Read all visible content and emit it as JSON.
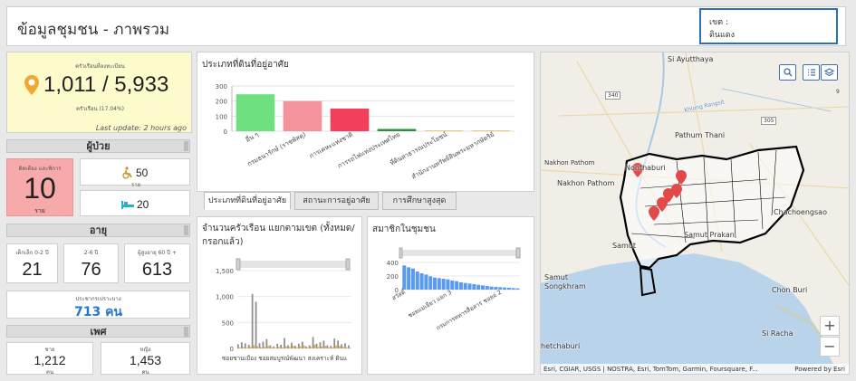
{
  "header": {
    "title": "ข้อมูลชุมชน - ภาพรวม",
    "district_label": "เขต :",
    "district_value": "ดินแดง"
  },
  "summary": {
    "caption_top": "ครัวเรือนที่ลงทะเบียน",
    "value": "1,011 / 5,933",
    "caption_bottom": "ครัวเรือน (17.04%)",
    "last_update": "Last update: 2 hours ago"
  },
  "disabled": {
    "heading": "ผู้ป่วย",
    "main_caption": "ติดเตียง และพิการ",
    "main_value": "10",
    "main_unit": "ราย",
    "wheelchair_value": "50",
    "wheelchair_unit": "ราย",
    "bed_value": "20"
  },
  "age": {
    "heading": "อายุ",
    "groups": [
      {
        "caption": "เด็กเล็ก 0-2 ปี",
        "value": "21"
      },
      {
        "caption": "2-6 ปี",
        "value": "76"
      },
      {
        "caption": "ผู้สูงอายุ 60 ปี +",
        "value": "613"
      }
    ],
    "vulnerable_caption": "ประชากรเปราะบาง",
    "vulnerable_value": "713 คน"
  },
  "gender": {
    "heading": "เพศ",
    "male_caption": "ชาย",
    "male_value": "1,212",
    "male_unit": "คน",
    "female_caption": "หญิง",
    "female_value": "1,453",
    "female_unit": "คน"
  },
  "land_chart": {
    "title": "ประเภทที่ดินที่อยู่อาศัย",
    "chart_data": {
      "type": "bar",
      "categories": [
        "อื่น ๆ",
        "กรมธนารักษ์ (ราชพัสดุ)",
        "การเคหะแห่งชาติ",
        "การรถไฟแห่งประเทศไทย",
        "ที่ดินสาธารณประโยชน์",
        "สำนักงานทรัพย์สินพระมหากษัตริย์"
      ],
      "values": [
        245,
        200,
        150,
        15,
        2,
        1
      ],
      "colors": [
        "#6fe07f",
        "#f5939a",
        "#f2405a",
        "#2f8f3d",
        "#e9b85a",
        "#e9b85a"
      ],
      "ylim": [
        0,
        300
      ],
      "yticks": [
        "0",
        "100",
        "200",
        "300"
      ]
    }
  },
  "tabs": [
    "ประเภทที่ดินที่อยู่อาศัย",
    "สถานะการอยู่อาศัย",
    "การศึกษาสูงสุด"
  ],
  "household_chart": {
    "title": "จำนวนครัวเรือน แยกตามเขต (ทั้งหมด/กรอกแล้ว)",
    "yticks": [
      "0",
      "500",
      "1,000",
      "1,500"
    ],
    "ylim": [
      0,
      1500
    ],
    "xlabel": "ซอยชานเมือง ชอยสมบูรณ์พัฒนา สงเคราะห์ ดินแ",
    "chart_data": {
      "type": "bar",
      "series": [
        {
          "values": [
            80,
            120,
            100,
            70,
            1050,
            900,
            100,
            130,
            180,
            60,
            40,
            90,
            70,
            200,
            60,
            110,
            50,
            90,
            130,
            40,
            60,
            220,
            90,
            120,
            150,
            60,
            50,
            190,
            150,
            80,
            100,
            60
          ]
        },
        {
          "values": [
            20,
            30,
            10,
            30,
            60,
            40,
            20,
            30,
            50,
            20,
            10,
            30,
            20,
            40,
            30,
            50,
            20,
            40,
            60,
            20,
            30,
            70,
            30,
            40,
            50,
            20,
            20,
            60,
            50,
            30,
            20,
            10
          ]
        }
      ],
      "colors": [
        "#8e8e8e",
        "#e8b044"
      ]
    }
  },
  "members_chart": {
    "title": "สมาชิกในชุมชน",
    "yticks": [
      "0",
      "200",
      "400"
    ],
    "ylim": [
      0,
      450
    ],
    "xlabels": [
      "สวัสดิ์",
      "ชอยแม่เยียว แยก 3",
      "กรมการทหารสื่อสาร ชอยอ่ 2"
    ],
    "chart_data": {
      "type": "bar",
      "values": [
        400,
        370,
        350,
        300,
        270,
        250,
        220,
        200,
        190,
        180,
        170,
        150,
        140,
        120,
        110,
        100,
        90,
        80,
        70,
        60,
        50,
        45,
        40,
        35,
        30,
        25,
        20
      ],
      "color": "#5b9bef"
    }
  },
  "map": {
    "labels": {
      "ayutthaya": "Si Ayutthaya",
      "pathum_thani": "Pathum Thani",
      "nonthaburi": "Nonthaburi",
      "nakhon_pathom_town": "Nakhon Pathom",
      "nakhon_pathom": "Nakhon Pathom",
      "chachoengsao": "Chachoengsao",
      "samut_prakan": "Samut Prakan",
      "samut_songkhram": "Samut Songkhram",
      "samut_sakhon": "Samut",
      "chon_buri": "Chon Buri",
      "si_racha": "Si Racha",
      "phetchaburi": "hetchaburi",
      "road_340": "340",
      "road_305": "305",
      "road_9": "9",
      "canal": "Khlong Rangsit"
    },
    "attribution": "Esri, CGIAR, USGS | NOSTRA, Esri, TomTom, Garmin, Foursquare, F...",
    "powered": "Powered by Esri",
    "zoom_in": "+",
    "zoom_out": "−"
  },
  "icons": {
    "marker": "location-pin-icon",
    "wheelchair": "wheelchair-icon",
    "bed": "bed-icon",
    "search": "search-icon",
    "list": "list-icon",
    "layers": "layers-icon"
  }
}
